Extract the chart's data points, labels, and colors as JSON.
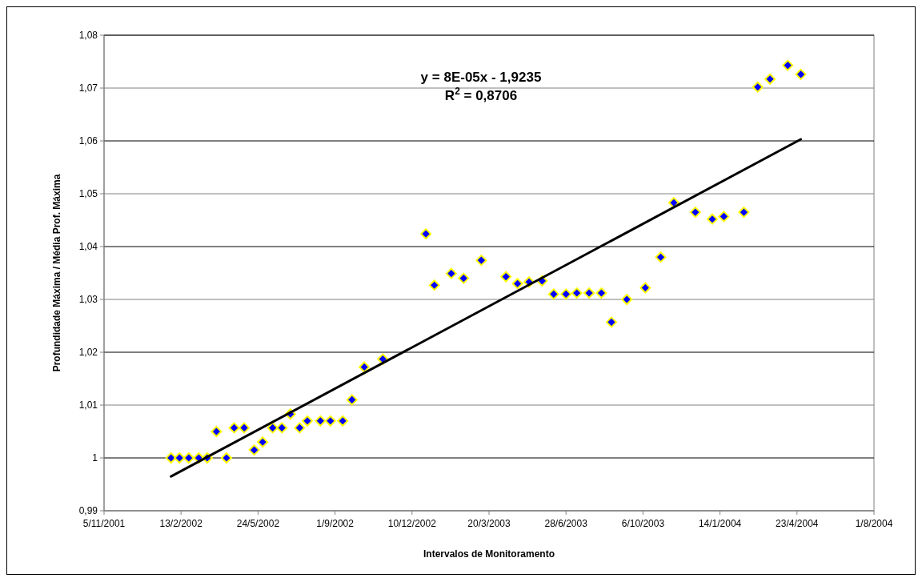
{
  "chart_data": {
    "type": "scatter",
    "xlabel": "Intervalos de Monitoramento",
    "ylabel": "Profundidade Máxima / Média Prof. Máxima",
    "annotations": [
      "y = 8E-05x - 1,9235",
      "R$^{2}$ = 0,8706"
    ],
    "xlim": [
      "2001-11-05",
      "2004-08-01"
    ],
    "xticks": [
      {
        "value": "2001-11-05",
        "label": "5/11/2001"
      },
      {
        "value": "2002-02-13",
        "label": "13/2/2002"
      },
      {
        "value": "2002-05-24",
        "label": "24/5/2002"
      },
      {
        "value": "2002-09-01",
        "label": "1/9/2002"
      },
      {
        "value": "2002-12-10",
        "label": "10/12/2002"
      },
      {
        "value": "2003-03-20",
        "label": "20/3/2003"
      },
      {
        "value": "2003-06-28",
        "label": "28/6/2003"
      },
      {
        "value": "2003-10-06",
        "label": "6/10/2003"
      },
      {
        "value": "2004-01-14",
        "label": "14/1/2004"
      },
      {
        "value": "2004-04-23",
        "label": "23/4/2004"
      },
      {
        "value": "2004-08-01",
        "label": "1/8/2004"
      }
    ],
    "ylim": [
      0.99,
      1.08
    ],
    "yticks": [
      {
        "value": 0.99,
        "label": "0,99"
      },
      {
        "value": 1,
        "label": "1"
      },
      {
        "value": 1.01,
        "label": "1,01"
      },
      {
        "value": 1.02,
        "label": "1,02"
      },
      {
        "value": 1.03,
        "label": "1,03"
      },
      {
        "value": 1.04,
        "label": "1,04"
      },
      {
        "value": 1.05,
        "label": "1,05"
      },
      {
        "value": 1.06,
        "label": "1,06"
      },
      {
        "value": 1.07,
        "label": "1,07"
      },
      {
        "value": 1.08,
        "label": "1,08"
      }
    ],
    "grid": "y",
    "series": [
      {
        "color": "#0000ff",
        "marker": "diamond",
        "x": [
          "2002-01-31",
          "2002-02-11",
          "2002-02-23",
          "2002-03-08",
          "2002-03-19",
          "2002-03-31",
          "2002-04-13",
          "2002-04-23",
          "2002-05-06",
          "2002-05-19",
          "2002-05-30",
          "2002-06-12",
          "2002-06-24",
          "2002-07-05",
          "2002-07-17",
          "2002-07-27",
          "2002-08-13",
          "2002-08-26",
          "2002-09-11",
          "2002-09-23",
          "2002-10-09",
          "2002-11-02",
          "2002-12-28",
          "2003-01-08",
          "2003-01-30",
          "2003-02-15",
          "2003-03-10",
          "2003-04-11",
          "2003-04-26",
          "2003-05-11",
          "2003-05-28",
          "2003-06-12",
          "2003-06-28",
          "2003-07-12",
          "2003-07-28",
          "2003-08-13",
          "2003-08-26",
          "2003-09-15",
          "2003-10-09",
          "2003-10-29",
          "2003-11-15",
          "2003-12-13",
          "2004-01-04",
          "2004-01-19",
          "2004-02-14",
          "2004-03-03",
          "2004-03-19",
          "2004-04-11",
          "2004-04-28"
        ],
        "values": [
          1.0,
          1.0,
          1.0,
          1.0,
          1.0,
          1.005,
          1.0,
          1.0057,
          1.0057,
          1.0015,
          1.003,
          1.0057,
          1.0057,
          1.0083,
          1.0057,
          1.007,
          1.007,
          1.007,
          1.007,
          1.011,
          1.0172,
          1.0187,
          1.0424,
          1.0327,
          1.0349,
          1.034,
          1.0374,
          1.0343,
          1.033,
          1.0333,
          1.0335,
          1.031,
          1.031,
          1.0312,
          1.0312,
          1.0312,
          1.0257,
          1.03,
          1.0322,
          1.038,
          1.0483,
          1.0465,
          1.0452,
          1.0457,
          1.0465,
          1.0702,
          1.0717,
          1.0743,
          1.0726
        ]
      },
      {
        "type": "line",
        "color": "#000000",
        "line_style": "solid",
        "x": [
          "2002-01-31",
          "2004-04-28"
        ],
        "values": [
          0.9965,
          1.0603
        ]
      }
    ]
  }
}
